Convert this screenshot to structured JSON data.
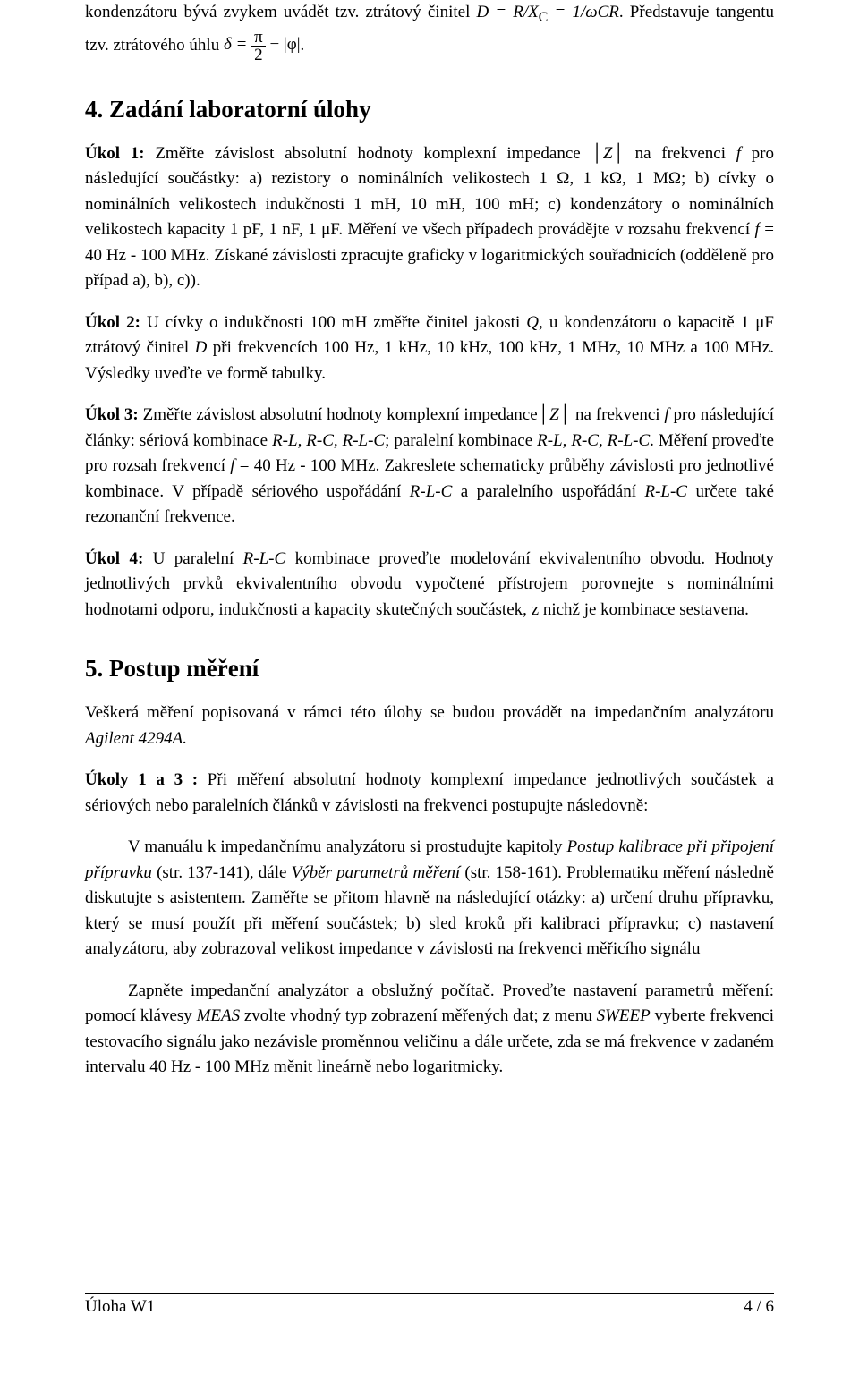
{
  "intro": {
    "p1_a": "kondenzátoru bývá zvykem uvádět tzv. ztrátový činitel ",
    "p1_b": "D = R/X",
    "p1_c": " = 1/ωCR",
    "p1_d": ". Představuje tangentu tzv. ztrátového úhlu ",
    "p1_e": "δ = ",
    "p1_f": " − |φ|",
    "p1_g": ".",
    "sub_c": "C",
    "frac_num": "π",
    "frac_den": "2"
  },
  "section4": {
    "heading": "4. Zadání laboratorní úlohy",
    "task1_label": "Úkol 1:",
    "task1_a": " Změřte závislost absolutní hodnoty komplexní impedance │",
    "task1_b": "Z",
    "task1_c": "│ na frekvenci ",
    "task1_d": "f",
    "task1_e": " pro následující součástky: a) rezistory o nominálních velikostech 1 Ω, 1 kΩ, 1 MΩ; b) cívky o nominálních velikostech indukčnosti 1 mH, 10 mH, 100 mH; c) kondenzátory o nominálních velikostech kapacity 1 pF, 1 nF, 1 μF.  Měření ve všech případech provádějte v rozsahu frekvencí  ",
    "task1_f": "f",
    "task1_g": "  = 40 Hz - 100 MHz. Získané závislosti zpracujte graficky v logaritmických souřadnicích (odděleně pro případ a), b), c)).",
    "task2_label": "Úkol 2:",
    "task2_a": "  U cívky o indukčnosti 100 mH změřte činitel jakosti ",
    "task2_b": "Q",
    "task2_c": ", u kondenzátoru o kapacitě 1 μF ztrátový činitel ",
    "task2_d": "D",
    "task2_e": " při frekvencích 100 Hz, 1 kHz, 10 kHz, 100 kHz, 1 MHz, 10 MHz a 100 MHz. Výsledky uveďte ve formě tabulky.",
    "task3_label": "Úkol 3:",
    "task3_a": " Změřte závislost absolutní hodnoty komplexní impedance│",
    "task3_b": "Z",
    "task3_c": "│ na frekvenci ",
    "task3_d": "f",
    "task3_e": " pro následující články: sériová kombinace ",
    "task3_f": "R-L, R-C, R-L-C",
    "task3_g": "; paralelní kombinace ",
    "task3_h": "R-L, R-C, R-L-C",
    "task3_i": ". Měření proveďte pro rozsah frekvencí ",
    "task3_j": "f",
    "task3_k": "  = 40 Hz - 100 MHz. Zakreslete schematicky průběhy závislosti pro jednotlivé kombinace. V případě sériového uspořádání ",
    "task3_l": "R-L-C",
    "task3_m": " a paralelního uspořádání ",
    "task3_n": "R-L-C",
    "task3_o": " určete také rezonanční frekvence.",
    "task4_label": "Úkol 4:",
    "task4_a": " U paralelní ",
    "task4_b": "R-L-C",
    "task4_c": " kombinace proveďte modelování ekvivalentního obvodu. Hodnoty jednotlivých prvků ekvivalentního obvodu vypočtené přístrojem porovnejte s nominálními hodnotami odporu, indukčnosti a kapacity skutečných součástek, z nichž je kombinace sestavena."
  },
  "section5": {
    "heading": "5. Postup měření",
    "p1_a": "Veškerá měření popisovaná v rámci této úlohy se budou provádět na impedančním analyzátoru ",
    "p1_b": "Agilent 4294A.",
    "p2_label": "Úkoly 1 a 3 :",
    "p2_a": " Při měření absolutní hodnoty komplexní impedance jednotlivých součástek a sériových nebo paralelních článků v závislosti na frekvenci postupujte následovně:",
    "p3_a": "V manuálu k impedančnímu analyzátoru si prostudujte kapitoly ",
    "p3_b": "Postup kalibrace při připojení přípravku",
    "p3_c": " (str. 137-141), dále ",
    "p3_d": "Výběr parametrů měření",
    "p3_e": " (str. 158-161). Problematiku měření následně diskutujte s asistentem. Zaměřte se přitom hlavně na následující otázky: a) určení druhu přípravku, který se musí použít při měření součástek; b) sled kroků při kalibraci přípravku; c) nastavení analyzátoru, aby zobrazoval velikost impedance v závislosti na frekvenci měřicího signálu",
    "p4_a": "Zapněte impedanční analyzátor a obslužný počítač. Proveďte nastavení parametrů měření: pomocí klávesy ",
    "p4_b": "MEAS",
    "p4_c": " zvolte vhodný typ zobrazení měřených dat; z menu ",
    "p4_d": "SWEEP",
    "p4_e": " vyberte frekvenci testovacího signálu jako nezávisle proměnnou veličinu a dále určete, zda se má frekvence v zadaném intervalu 40 Hz - 100 MHz měnit lineárně nebo logaritmicky."
  },
  "footer": {
    "left": "Úloha W1",
    "right": "4 / 6"
  }
}
